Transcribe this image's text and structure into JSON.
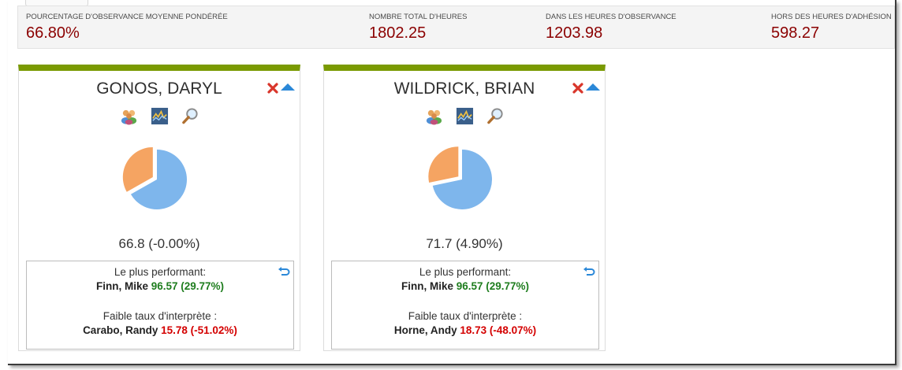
{
  "summary": [
    {
      "label": "POURCENTAGE D'OBSERVANCE MOYENNE PONDÉRÉE",
      "value": "66.80%"
    },
    {
      "label": "NOMBRE TOTAL D'HEURES",
      "value": "1802.25"
    },
    {
      "label": "DANS LES HEURES D'OBSERVANCE",
      "value": "1203.98"
    },
    {
      "label": "HORS DES HEURES D'ADHÉSION",
      "value": "598.27"
    }
  ],
  "icons": {
    "close": "close-icon",
    "collapse": "triangle-up-icon",
    "team": "team-icon",
    "chart": "line-chart-icon",
    "search": "magnifier-icon",
    "undo": "undo-icon"
  },
  "colors": {
    "accent_bar": "#7a9a01",
    "pie_main": "#7eb6ec",
    "pie_slice": "#f5a462",
    "value_red": "#8b0000",
    "positive": "#1e7d1e",
    "negative": "#d40000"
  },
  "cards": [
    {
      "name": "GONOS, DARYL",
      "score": "66.8 (-0.00%)",
      "pie_fraction": 0.668,
      "best_label": "Le plus performant:",
      "best_name": "Finn, Mike",
      "best_value": "96.57 (29.77%)",
      "low_label": "Faible taux d'interprète :",
      "low_name": "Carabo, Randy",
      "low_value": "15.78 (-51.02%)"
    },
    {
      "name": "WILDRICK, BRIAN",
      "score": "71.7 (4.90%)",
      "pie_fraction": 0.717,
      "best_label": "Le plus performant:",
      "best_name": "Finn, Mike",
      "best_value": "96.57 (29.77%)",
      "low_label": "Faible taux d'interprète :",
      "low_name": "Horne, Andy",
      "low_value": "18.73 (-48.07%)"
    }
  ]
}
